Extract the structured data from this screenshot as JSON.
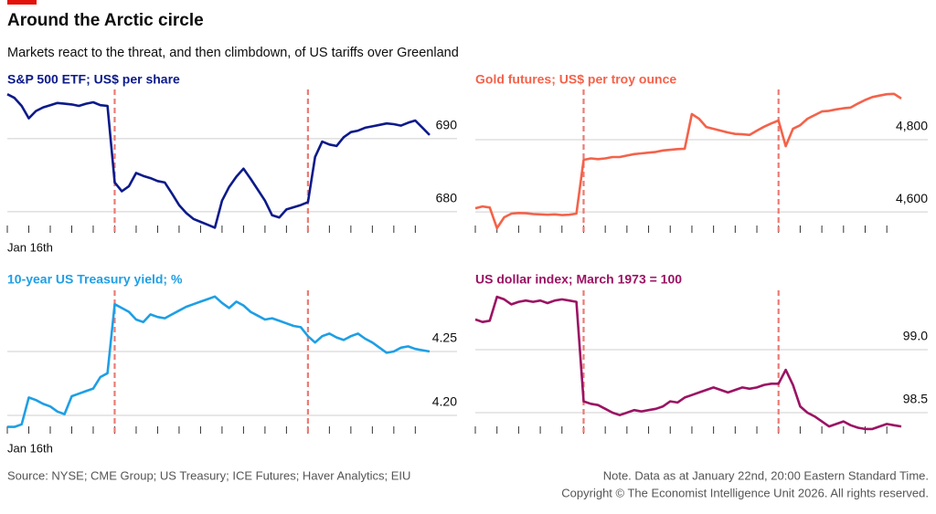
{
  "header": {
    "title": "Around the Arctic circle",
    "subtitle": "Markets react to the threat, and then climbdown, of US tariffs over Greenland"
  },
  "footer": {
    "source": "Source: NYSE; CME Group; US Treasury; ICE Futures; Haver Analytics; EIU",
    "note": "Note. Data as at January 22nd, 20:00 Eastern Standard Time.",
    "copyright": "Copyright © The Economist Intelligence Unit 2026. All rights reserved."
  },
  "chart_data": [
    {
      "type": "line",
      "title": "S&P 500 ETF; US$ per share",
      "color": "#0c1a8a",
      "categories": [
        "Jan 16th",
        null,
        null,
        null,
        null,
        null,
        null,
        null,
        null,
        null,
        null,
        null,
        null,
        null,
        null,
        null,
        null,
        null,
        null,
        null,
        null,
        null,
        null,
        null,
        null,
        null,
        null,
        null,
        null,
        null,
        null,
        null,
        null,
        null,
        null,
        null,
        null,
        null,
        null,
        null,
        null,
        null,
        null,
        null,
        null,
        null,
        null,
        null,
        null,
        null,
        null,
        null,
        null,
        null,
        null,
        null,
        null,
        null,
        null,
        null
      ],
      "values": [
        696.1,
        695.6,
        694.5,
        692.8,
        693.8,
        694.3,
        694.6,
        694.9,
        694.8,
        694.7,
        694.5,
        694.8,
        695.0,
        694.6,
        694.5,
        684.0,
        682.8,
        683.5,
        685.3,
        684.9,
        684.6,
        684.2,
        684.0,
        682.5,
        680.9,
        679.8,
        679.0,
        678.6,
        678.2,
        677.8,
        681.5,
        683.4,
        684.8,
        685.9,
        684.5,
        683.0,
        681.5,
        679.5,
        679.2,
        680.3,
        680.6,
        680.9,
        681.3,
        687.5,
        689.6,
        689.2,
        689.0,
        690.2,
        690.9,
        691.1,
        691.5,
        691.7,
        691.9,
        692.1,
        692.0,
        691.8,
        692.2,
        692.5,
        691.5,
        690.5
      ],
      "vlines": [
        15,
        42
      ],
      "ylim": [
        677.1,
        696.5
      ],
      "yticks": [
        680,
        690
      ],
      "grid": true
    },
    {
      "type": "line",
      "title": "Gold futures; US$ per troy ounce",
      "color": "#f4624a",
      "values": [
        4610,
        4615,
        4612,
        4555,
        4585,
        4595,
        4597,
        4596,
        4594,
        4593,
        4592,
        4593,
        4591,
        4592,
        4595,
        4744,
        4748,
        4746,
        4748,
        4752,
        4752,
        4756,
        4760,
        4762,
        4764,
        4766,
        4770,
        4772,
        4774,
        4775,
        4871,
        4858,
        4835,
        4830,
        4825,
        4820,
        4816,
        4815,
        4813,
        4825,
        4836,
        4845,
        4853,
        4782,
        4830,
        4840,
        4858,
        4868,
        4878,
        4880,
        4884,
        4887,
        4889,
        4900,
        4910,
        4918,
        4922,
        4926,
        4927,
        4914
      ],
      "vlines": [
        15,
        42
      ],
      "ylim": [
        4542,
        4934
      ],
      "yticks": [
        {
          "value": 4600,
          "label": "4,600"
        },
        {
          "value": 4800,
          "label": "4,800"
        }
      ],
      "grid": true
    },
    {
      "type": "line",
      "title": "10-year US Treasury yield; %",
      "color": "#1e9fe5",
      "categories": [
        "Jan 16th",
        null,
        null,
        null,
        null,
        null,
        null,
        null,
        null,
        null,
        null,
        null,
        null,
        null,
        null,
        null,
        null,
        null,
        null,
        null,
        null,
        null,
        null,
        null,
        null,
        null,
        null,
        null,
        null,
        null,
        null,
        null,
        null,
        null,
        null,
        null,
        null,
        null,
        null,
        null,
        null,
        null,
        null,
        null,
        null,
        null,
        null,
        null,
        null,
        null,
        null,
        null,
        null,
        null,
        null,
        null,
        null,
        null,
        null,
        null
      ],
      "values": [
        4.191,
        4.191,
        4.193,
        4.214,
        4.212,
        4.209,
        4.207,
        4.203,
        4.201,
        4.215,
        4.217,
        4.219,
        4.221,
        4.23,
        4.233,
        4.287,
        4.284,
        4.281,
        4.275,
        4.273,
        4.279,
        4.277,
        4.276,
        4.279,
        4.282,
        4.285,
        4.287,
        4.289,
        4.291,
        4.293,
        4.288,
        4.284,
        4.289,
        4.286,
        4.281,
        4.278,
        4.275,
        4.276,
        4.274,
        4.272,
        4.27,
        4.269,
        4.262,
        4.257,
        4.262,
        4.264,
        4.261,
        4.259,
        4.262,
        4.264,
        4.26,
        4.257,
        4.253,
        4.249,
        4.25,
        4.253,
        4.254,
        4.252,
        4.251,
        4.25
      ],
      "vlines": [
        15,
        42
      ],
      "ylim": [
        4.1857,
        4.2964
      ],
      "yticks": [
        {
          "value": 4.2,
          "label": "4.20"
        },
        4.25
      ],
      "grid": true
    },
    {
      "type": "line",
      "title": "US dollar index; March 1973 = 100",
      "color": "#9b1263",
      "values": [
        99.24,
        99.22,
        99.23,
        99.42,
        99.4,
        99.36,
        99.38,
        99.39,
        99.38,
        99.39,
        99.37,
        99.39,
        99.4,
        99.39,
        99.38,
        98.59,
        98.57,
        98.56,
        98.53,
        98.5,
        98.48,
        98.5,
        98.52,
        98.51,
        98.52,
        98.53,
        98.55,
        98.59,
        98.58,
        98.62,
        98.64,
        98.66,
        98.68,
        98.7,
        98.68,
        98.66,
        98.68,
        98.7,
        98.69,
        98.7,
        98.72,
        98.73,
        98.73,
        98.84,
        98.72,
        98.55,
        98.5,
        98.47,
        98.43,
        98.39,
        98.41,
        98.43,
        98.4,
        98.38,
        98.37,
        98.37,
        98.39,
        98.41,
        98.4,
        98.39
      ],
      "vlines": [
        15,
        42
      ],
      "ylim": [
        98.333,
        99.457
      ],
      "yticks": [
        98.5,
        {
          "value": 99,
          "label": "99.0"
        }
      ],
      "grid": true
    }
  ]
}
